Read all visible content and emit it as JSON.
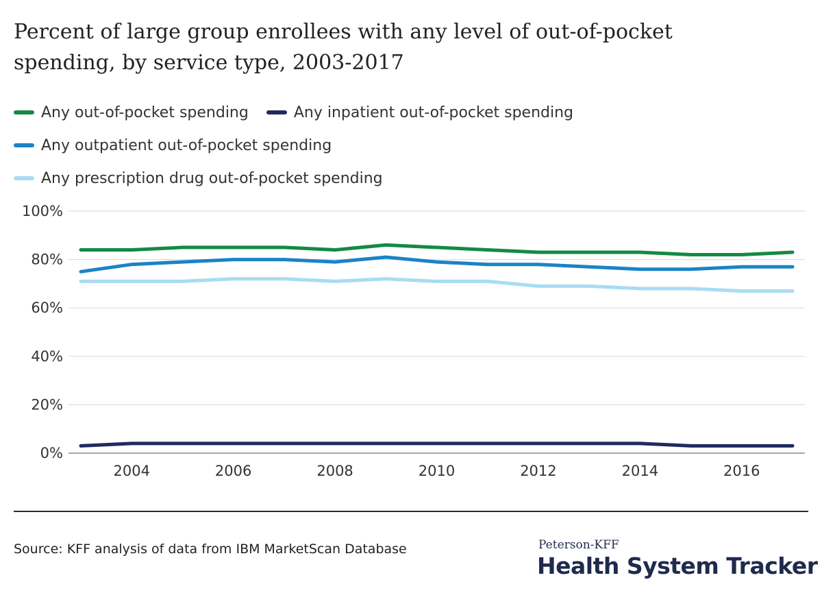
{
  "title": "Percent of large group enrollees with any level of out-of-pocket spending, by service type, 2003-2017",
  "source": "Source: KFF analysis of data from IBM MarketScan Database",
  "branding": {
    "top": "Peterson-KFF",
    "main": "Health System Tracker"
  },
  "legend_rows": [
    [
      {
        "label": "Any out-of-pocket spending",
        "color": "#138a43"
      },
      {
        "label": "Any inpatient out-of-pocket spending",
        "color": "#1f2b5e"
      }
    ],
    [
      {
        "label": "Any outpatient out-of-pocket spending",
        "color": "#1a83c6"
      }
    ],
    [
      {
        "label": "Any prescription drug out-of-pocket spending",
        "color": "#a8dcf2"
      }
    ]
  ],
  "chart_data": {
    "type": "line",
    "x": [
      2003,
      2004,
      2005,
      2006,
      2007,
      2008,
      2009,
      2010,
      2011,
      2012,
      2013,
      2014,
      2015,
      2016,
      2017
    ],
    "series": [
      {
        "name": "Any out-of-pocket spending",
        "color": "#138a43",
        "values": [
          84,
          84,
          85,
          85,
          85,
          84,
          86,
          85,
          84,
          83,
          83,
          83,
          82,
          82,
          83
        ]
      },
      {
        "name": "Any inpatient out-of-pocket spending",
        "color": "#1f2b5e",
        "values": [
          3,
          4,
          4,
          4,
          4,
          4,
          4,
          4,
          4,
          4,
          4,
          4,
          3,
          3,
          3
        ]
      },
      {
        "name": "Any outpatient out-of-pocket spending",
        "color": "#1a83c6",
        "values": [
          75,
          78,
          79,
          80,
          80,
          79,
          81,
          79,
          78,
          78,
          77,
          76,
          76,
          77,
          77
        ]
      },
      {
        "name": "Any prescription drug out-of-pocket spending",
        "color": "#a8dcf2",
        "values": [
          71,
          71,
          71,
          72,
          72,
          71,
          72,
          71,
          71,
          69,
          69,
          68,
          68,
          67,
          67
        ]
      }
    ],
    "x_ticks": [
      2004,
      2006,
      2008,
      2010,
      2012,
      2014,
      2016
    ],
    "y_ticks": [
      {
        "value": 0,
        "label": "0%"
      },
      {
        "value": 20,
        "label": "20%"
      },
      {
        "value": 40,
        "label": "40%"
      },
      {
        "value": 60,
        "label": "60%"
      },
      {
        "value": 80,
        "label": "80%"
      },
      {
        "value": 100,
        "label": "100%"
      }
    ],
    "xlim": [
      2003,
      2017
    ],
    "ylim": [
      0,
      100
    ],
    "grid": true,
    "legend_position": "top-left",
    "grid_color": "#dddddd"
  }
}
